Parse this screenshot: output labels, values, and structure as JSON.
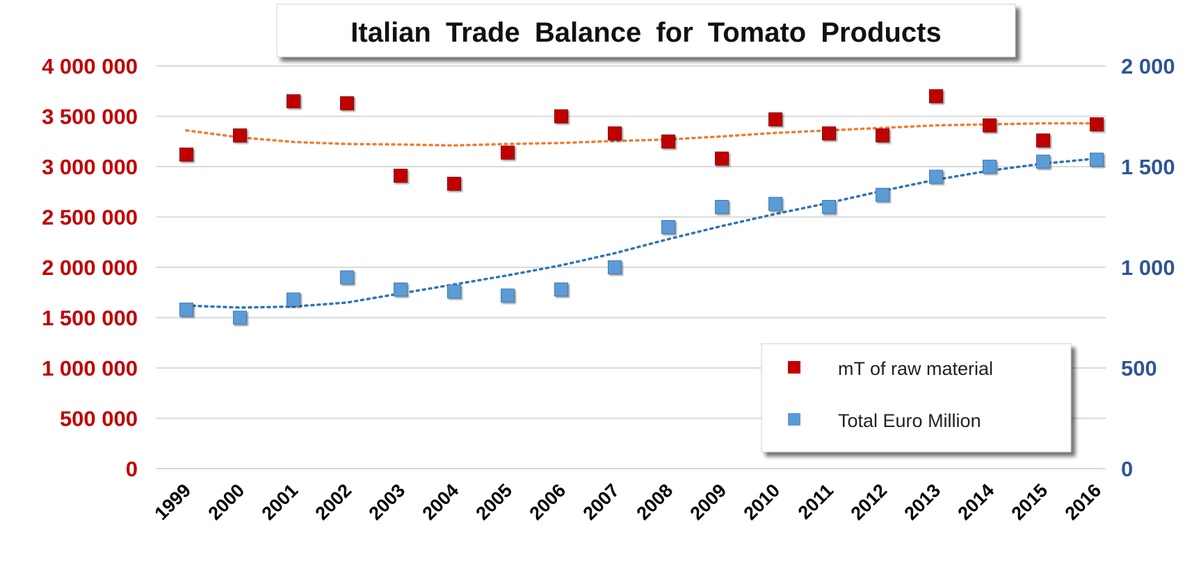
{
  "chart_data": {
    "type": "scatter",
    "title": "Italian Trade Balance for Tomato Products",
    "x": [
      "1999",
      "2000",
      "2001",
      "2002",
      "2003",
      "2004",
      "2005",
      "2006",
      "2007",
      "2008",
      "2009",
      "2010",
      "2011",
      "2012",
      "2013",
      "2014",
      "2015",
      "2016"
    ],
    "y_left": {
      "ylim": [
        0,
        4000000
      ],
      "ticks": [
        0,
        500000,
        1000000,
        1500000,
        2000000,
        2500000,
        3000000,
        3500000,
        4000000
      ],
      "tick_labels": [
        "0",
        "500 000",
        "1 000 000",
        "1 500 000",
        "2 000 000",
        "2 500 000",
        "3 000 000",
        "3 500 000",
        "4 000 000"
      ]
    },
    "y_right": {
      "ylim": [
        0,
        2000
      ],
      "ticks": [
        0,
        500,
        1000,
        1500,
        2000
      ],
      "tick_labels": [
        "0",
        "500",
        "1 000",
        "1 500",
        "2 000"
      ]
    },
    "grid": true,
    "legend_position": "bottom-right",
    "series": [
      {
        "name": "mT of raw material",
        "axis": "left",
        "color": "#c00000",
        "marker": "square",
        "values": [
          3120000,
          3310000,
          3650000,
          3630000,
          2910000,
          2830000,
          3140000,
          3500000,
          3330000,
          3250000,
          3080000,
          3470000,
          3330000,
          3310000,
          3700000,
          3410000,
          3260000,
          3420000
        ],
        "trend": [
          3360000,
          3290000,
          3245000,
          3225000,
          3220000,
          3210000,
          3225000,
          3235000,
          3255000,
          3270000,
          3300000,
          3335000,
          3360000,
          3385000,
          3410000,
          3420000,
          3430000,
          3430000
        ]
      },
      {
        "name": "Total Euro Million",
        "axis": "right",
        "color": "#5b9bd5",
        "marker": "square",
        "values": [
          790,
          750,
          840,
          950,
          890,
          880,
          860,
          890,
          1000,
          1200,
          1300,
          1315,
          1300,
          1360,
          1450,
          1500,
          1525,
          1535
        ],
        "trend": [
          810,
          800,
          805,
          825,
          870,
          915,
          960,
          1010,
          1070,
          1140,
          1205,
          1265,
          1320,
          1380,
          1435,
          1480,
          1515,
          1540
        ]
      }
    ]
  }
}
